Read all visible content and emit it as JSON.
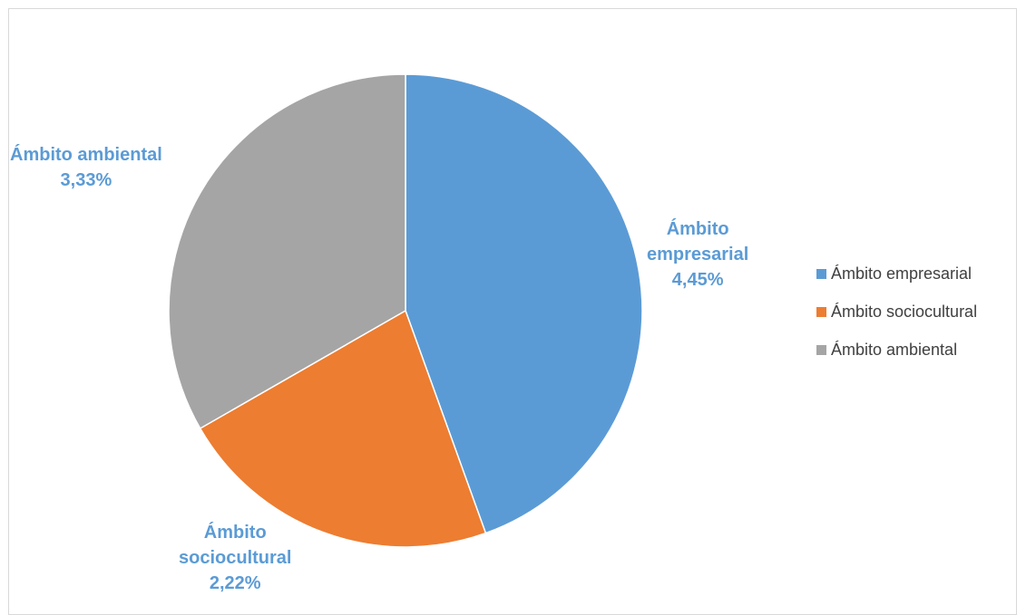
{
  "chart_data": {
    "type": "pie",
    "slices": [
      {
        "label": "Ámbito empresarial",
        "value": 4.45,
        "value_label": "4,45%",
        "color": "#5b9bd5",
        "label_lines": [
          "Ámbito",
          "empresarial",
          "4,45%"
        ]
      },
      {
        "label": "Ámbito sociocultural",
        "value": 2.22,
        "value_label": "2,22%",
        "color": "#ed7d31",
        "label_lines": [
          "Ámbito",
          "sociocultural",
          "2,22%"
        ]
      },
      {
        "label": "Ámbito ambiental",
        "value": 3.33,
        "value_label": "3,33%",
        "color": "#a5a5a5",
        "label_lines": [
          "Ámbito ambiental",
          "3,33%"
        ]
      }
    ],
    "start_angle_deg": 0,
    "direction": "clockwise",
    "legend_position": "right",
    "data_label_color": "#5b9bd5"
  }
}
